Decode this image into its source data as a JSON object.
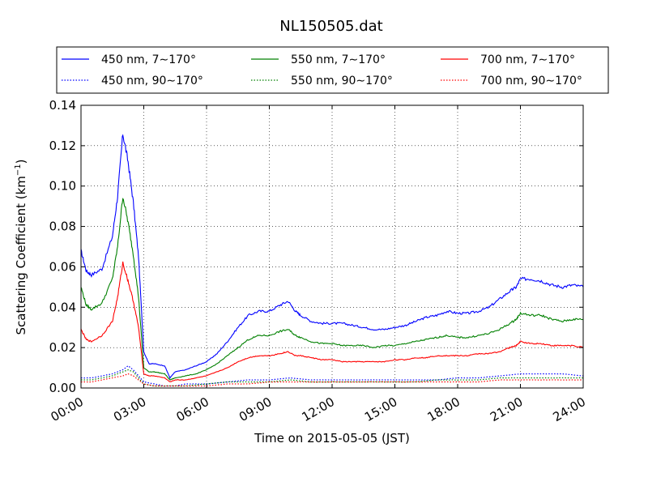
{
  "chart_data": {
    "type": "line",
    "title": "NL150505.dat",
    "xlabel": "Time on 2015-05-05 (JST)",
    "ylabel": "Scattering Coefficient (km",
    "ylabel_sup": "−1",
    "ylabel_end": ")",
    "xlim": [
      "00:00",
      "24:00"
    ],
    "ylim": [
      0,
      0.14
    ],
    "grid": true,
    "legend_position": "top",
    "x_ticks": [
      "00:00",
      "03:00",
      "06:00",
      "09:00",
      "12:00",
      "15:00",
      "18:00",
      "21:00",
      "24:00"
    ],
    "y_ticks": [
      "0.00",
      "0.02",
      "0.04",
      "0.06",
      "0.08",
      "0.10",
      "0.12",
      "0.14"
    ],
    "series": [
      {
        "name": "450 nm, 7∼170°",
        "color": "#0000ff",
        "style": "solid",
        "x": [
          0,
          0.25,
          0.5,
          1.0,
          1.5,
          1.75,
          2.0,
          2.25,
          2.5,
          2.75,
          3.0,
          3.25,
          3.5,
          4.0,
          4.25,
          4.5,
          5.0,
          5.5,
          6.0,
          6.5,
          7.0,
          7.5,
          8.0,
          8.5,
          9.0,
          9.5,
          9.9,
          10.25,
          10.5,
          11.0,
          11.5,
          12.0,
          12.5,
          13.0,
          13.5,
          14.0,
          14.5,
          15.0,
          15.5,
          16.0,
          16.5,
          17.0,
          17.5,
          18.0,
          18.5,
          19.0,
          19.5,
          20.0,
          20.5,
          20.8,
          21.0,
          21.5,
          22.0,
          22.5,
          23.0,
          23.5,
          24.0
        ],
        "y": [
          0.068,
          0.058,
          0.056,
          0.059,
          0.075,
          0.095,
          0.126,
          0.112,
          0.092,
          0.065,
          0.018,
          0.012,
          0.012,
          0.011,
          0.005,
          0.008,
          0.009,
          0.011,
          0.013,
          0.017,
          0.023,
          0.03,
          0.036,
          0.038,
          0.038,
          0.041,
          0.043,
          0.038,
          0.036,
          0.033,
          0.032,
          0.032,
          0.032,
          0.031,
          0.03,
          0.029,
          0.029,
          0.03,
          0.031,
          0.033,
          0.035,
          0.036,
          0.038,
          0.037,
          0.037,
          0.038,
          0.04,
          0.044,
          0.048,
          0.05,
          0.054,
          0.054,
          0.053,
          0.051,
          0.05,
          0.051,
          0.05
        ]
      },
      {
        "name": "450 nm, 90∼170°",
        "color": "#0000ff",
        "style": "dotted",
        "x": [
          0,
          0.5,
          1.0,
          1.5,
          2.0,
          2.25,
          2.5,
          3.0,
          3.5,
          4.0,
          4.5,
          5.0,
          6.0,
          7.0,
          8.0,
          9.0,
          10.0,
          11.0,
          12.0,
          13.0,
          14.0,
          15.0,
          16.0,
          17.0,
          18.0,
          19.0,
          20.0,
          21.0,
          22.0,
          23.0,
          24.0
        ],
        "y": [
          0.005,
          0.005,
          0.006,
          0.007,
          0.009,
          0.011,
          0.009,
          0.003,
          0.002,
          0.001,
          0.001,
          0.002,
          0.002,
          0.003,
          0.004,
          0.004,
          0.005,
          0.004,
          0.004,
          0.004,
          0.004,
          0.004,
          0.004,
          0.004,
          0.005,
          0.005,
          0.006,
          0.007,
          0.007,
          0.007,
          0.006
        ]
      },
      {
        "name": "550 nm, 7∼170°",
        "color": "#008000",
        "style": "solid",
        "x": [
          0,
          0.25,
          0.5,
          1.0,
          1.5,
          1.75,
          2.0,
          2.25,
          2.5,
          2.75,
          3.0,
          3.25,
          3.5,
          4.0,
          4.25,
          4.5,
          5.0,
          5.5,
          6.0,
          6.5,
          7.0,
          7.5,
          8.0,
          8.5,
          9.0,
          9.5,
          9.9,
          10.25,
          10.5,
          11.0,
          11.5,
          12.0,
          12.5,
          13.0,
          13.5,
          14.0,
          14.5,
          15.0,
          15.5,
          16.0,
          16.5,
          17.0,
          17.5,
          18.0,
          18.5,
          19.0,
          19.5,
          20.0,
          20.5,
          20.8,
          21.0,
          21.5,
          22.0,
          22.5,
          23.0,
          23.5,
          24.0
        ],
        "y": [
          0.05,
          0.041,
          0.039,
          0.042,
          0.054,
          0.07,
          0.095,
          0.082,
          0.066,
          0.045,
          0.01,
          0.008,
          0.008,
          0.007,
          0.004,
          0.005,
          0.006,
          0.007,
          0.009,
          0.012,
          0.016,
          0.02,
          0.024,
          0.026,
          0.026,
          0.028,
          0.029,
          0.026,
          0.025,
          0.023,
          0.022,
          0.022,
          0.021,
          0.021,
          0.021,
          0.02,
          0.021,
          0.021,
          0.022,
          0.023,
          0.024,
          0.025,
          0.026,
          0.025,
          0.025,
          0.026,
          0.027,
          0.029,
          0.032,
          0.034,
          0.037,
          0.036,
          0.036,
          0.034,
          0.033,
          0.034,
          0.034
        ]
      },
      {
        "name": "550 nm, 90∼170°",
        "color": "#008000",
        "style": "dotted",
        "x": [
          0,
          0.5,
          1.0,
          1.5,
          2.0,
          2.25,
          2.5,
          3.0,
          3.5,
          4.0,
          4.5,
          5.0,
          6.0,
          7.0,
          8.0,
          9.0,
          10.0,
          11.0,
          12.0,
          13.0,
          14.0,
          15.0,
          16.0,
          17.0,
          18.0,
          19.0,
          20.0,
          21.0,
          22.0,
          23.0,
          24.0
        ],
        "y": [
          0.004,
          0.004,
          0.005,
          0.006,
          0.008,
          0.009,
          0.008,
          0.002,
          0.001,
          0.001,
          0.001,
          0.001,
          0.002,
          0.003,
          0.003,
          0.003,
          0.004,
          0.003,
          0.003,
          0.003,
          0.003,
          0.003,
          0.003,
          0.004,
          0.004,
          0.004,
          0.005,
          0.005,
          0.005,
          0.005,
          0.005
        ]
      },
      {
        "name": "700 nm, 7∼170°",
        "color": "#ff0000",
        "style": "solid",
        "x": [
          0,
          0.25,
          0.5,
          1.0,
          1.5,
          1.75,
          2.0,
          2.25,
          2.5,
          2.75,
          3.0,
          3.25,
          3.5,
          4.0,
          4.25,
          4.5,
          5.0,
          5.5,
          6.0,
          6.5,
          7.0,
          7.5,
          8.0,
          8.5,
          9.0,
          9.5,
          9.9,
          10.25,
          10.5,
          11.0,
          11.5,
          12.0,
          12.5,
          13.0,
          13.5,
          14.0,
          14.5,
          15.0,
          15.5,
          16.0,
          16.5,
          17.0,
          17.5,
          18.0,
          18.5,
          19.0,
          19.5,
          20.0,
          20.5,
          20.8,
          21.0,
          21.5,
          22.0,
          22.5,
          23.0,
          23.5,
          24.0
        ],
        "y": [
          0.029,
          0.024,
          0.023,
          0.026,
          0.033,
          0.045,
          0.062,
          0.053,
          0.043,
          0.03,
          0.007,
          0.006,
          0.006,
          0.005,
          0.003,
          0.004,
          0.004,
          0.005,
          0.006,
          0.008,
          0.01,
          0.013,
          0.015,
          0.016,
          0.016,
          0.017,
          0.018,
          0.016,
          0.016,
          0.015,
          0.014,
          0.014,
          0.013,
          0.013,
          0.013,
          0.013,
          0.013,
          0.014,
          0.014,
          0.015,
          0.015,
          0.016,
          0.016,
          0.016,
          0.016,
          0.017,
          0.017,
          0.018,
          0.02,
          0.021,
          0.023,
          0.022,
          0.022,
          0.021,
          0.021,
          0.021,
          0.02
        ]
      },
      {
        "name": "700 nm, 90∼170°",
        "color": "#ff0000",
        "style": "dotted",
        "x": [
          0,
          0.5,
          1.0,
          1.5,
          2.0,
          2.25,
          2.5,
          3.0,
          3.5,
          4.0,
          4.5,
          5.0,
          6.0,
          7.0,
          8.0,
          9.0,
          10.0,
          11.0,
          12.0,
          13.0,
          14.0,
          15.0,
          16.0,
          17.0,
          18.0,
          19.0,
          20.0,
          21.0,
          22.0,
          23.0,
          24.0
        ],
        "y": [
          0.003,
          0.003,
          0.004,
          0.005,
          0.006,
          0.007,
          0.006,
          0.002,
          0.001,
          0.001,
          0.001,
          0.001,
          0.001,
          0.002,
          0.002,
          0.003,
          0.003,
          0.003,
          0.003,
          0.003,
          0.003,
          0.003,
          0.003,
          0.003,
          0.003,
          0.003,
          0.004,
          0.004,
          0.004,
          0.004,
          0.004
        ]
      }
    ]
  }
}
